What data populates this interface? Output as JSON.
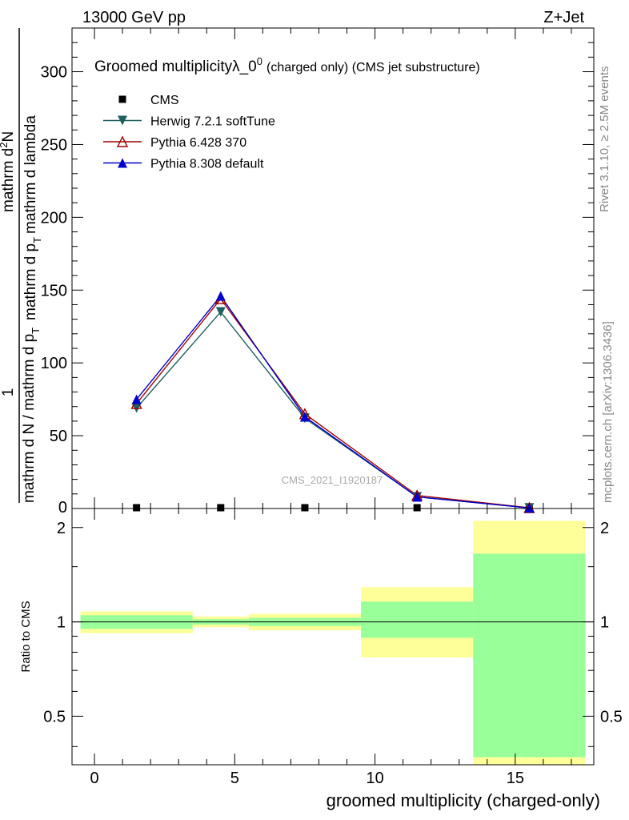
{
  "header": {
    "energy": "13000 GeV pp",
    "process": "Z+Jet",
    "side_rivet": "Rivet 3.1.10, ≥ 2.5M events",
    "side_source": "mcplots.cern.ch [arXiv:1306.3436]",
    "watermark": "CMS_2021_I1920187"
  },
  "colors": {
    "cms": "#000000",
    "herwig": "#1f5f5f",
    "pythia6": "#a00000",
    "pythia8": "#0000cc",
    "band_inner": "#99ff99",
    "band_outer": "#ffff99"
  },
  "chart_data": [
    {
      "type": "line",
      "title_main": "Groomed multiplicity",
      "title_lambda": "λ_0",
      "title_sup": "0",
      "title_rest": "(charged only) (CMS jet substructure)",
      "ylabel_frac": "1",
      "ylabel_den": "mathrm d N / mathrm d p",
      "ylabel_num": "mathrm d",
      "ylabel_num_sup": "2",
      "ylabel_num_tail": "N",
      "ylabel_den2": "mathrm d p",
      "ylabel_den2_sub": "T",
      "ylabel_den2_tail": "mathrm d lambda",
      "ylim": [
        0,
        330
      ],
      "xlim": [
        -0.8,
        17.8
      ],
      "yticks": [
        50,
        100,
        150,
        200,
        250,
        300
      ],
      "ytick_labels": [
        "50",
        "100",
        "150",
        "200",
        "250",
        "300"
      ],
      "y0_label": "0",
      "legend_position": "top-left",
      "series": [
        {
          "name": "CMS",
          "marker": "square",
          "x": [
            1.5,
            4.5,
            7.5,
            11.5,
            15.5
          ],
          "y": [
            0,
            0,
            0,
            0,
            0
          ]
        },
        {
          "name": "Herwig 7.2.1 softTune",
          "marker": "triangle-down",
          "x": [
            1.5,
            4.5,
            7.5,
            11.5,
            15.5
          ],
          "y": [
            69,
            135,
            62,
            8,
            0.4
          ]
        },
        {
          "name": "Pythia 6.428 370",
          "marker": "triangle-up-open",
          "x": [
            1.5,
            4.5,
            7.5,
            11.5,
            15.5
          ],
          "y": [
            72,
            144,
            65,
            9,
            0.5
          ]
        },
        {
          "name": "Pythia 8.308 default",
          "marker": "triangle-up",
          "x": [
            1.5,
            4.5,
            7.5,
            11.5,
            15.5
          ],
          "y": [
            75,
            146,
            63,
            8,
            0.4
          ]
        }
      ]
    },
    {
      "type": "area",
      "ylabel": "Ratio to CMS",
      "xlabel": "groomed multiplicity (charged-only)",
      "scale": "log",
      "ylim": [
        0.35,
        2.3
      ],
      "xlim": [
        -0.8,
        17.8
      ],
      "xticks": [
        0,
        5,
        10,
        15
      ],
      "xtick_labels": [
        "0",
        "5",
        "10",
        "15"
      ],
      "yticks": [
        0.5,
        1,
        2
      ],
      "ytick_labels": [
        "0.5",
        "1",
        "2"
      ],
      "reference": 1,
      "bins": [
        {
          "x0": -0.5,
          "x1": 3.5,
          "inner": [
            0.95,
            1.05
          ],
          "outer": [
            0.92,
            1.08
          ]
        },
        {
          "x0": 3.5,
          "x1": 5.5,
          "inner": [
            0.98,
            1.02
          ],
          "outer": [
            0.96,
            1.04
          ]
        },
        {
          "x0": 5.5,
          "x1": 9.5,
          "inner": [
            0.97,
            1.03
          ],
          "outer": [
            0.94,
            1.06
          ]
        },
        {
          "x0": 9.5,
          "x1": 13.5,
          "inner": [
            0.89,
            1.16
          ],
          "outer": [
            0.77,
            1.29
          ]
        },
        {
          "x0": 13.5,
          "x1": 17.5,
          "inner": [
            0.37,
            1.65
          ],
          "outer": [
            0.3,
            2.1
          ]
        }
      ]
    }
  ]
}
